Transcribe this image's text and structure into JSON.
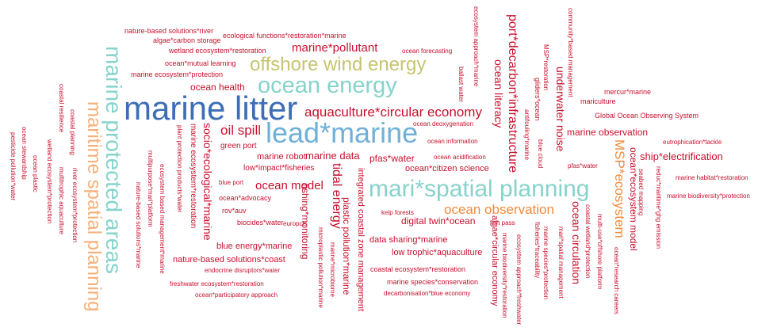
{
  "colors": {
    "red": "#c8102e",
    "blue": "#3d6eb5",
    "teal": "#86d3cc",
    "olive": "#c6c46f",
    "lightblue": "#6fb0d9",
    "orange": "#f28a3b",
    "peach": "#f5b07a"
  },
  "words": {
    "marine_litter": "marine litter",
    "lead_marine": "lead*marine",
    "mari_spatial_planning": "mari*spatial planning",
    "ocean_energy": "ocean energy",
    "offshore_wind_energy": "offshore wind energy",
    "marine_protected_areas": "marine protected areas",
    "maritime_spatial_planning": "maritime spatial planning",
    "aquaculture_circular_economy": "aquaculture*circular economy",
    "ocean_observation": "ocean observation",
    "msp_ecosystem": "MSP*ecosystem",
    "port_decarbon_infrastructure": "port*decarbon*infrastructure",
    "ocean_literacy": "ocean literacy",
    "tidal_energy": "tidal energy",
    "marine_pollutant": "marine*pollutant",
    "oil_spill": "oil spill",
    "ocean_model": "ocean model",
    "marine_data": "marine data",
    "pfas_water": "pfas*water",
    "ocean_health": "ocean health",
    "socio_ecological_marine": "socio*ecological*marine",
    "underwater_noise": "underwater noise",
    "ocean_circulation": "ocean circulation",
    "ocean_ecosystem_model": "ocean*ecosystem model",
    "marine_observation": "marine observation",
    "ship_electrification": "ship*electrification",
    "digital_twin_ocean": "digital twin*ocean",
    "plastic_pollution_marine": "plastic pollution*marine",
    "integrated_coastal_zone_management": "integrated coastal zone management",
    "fishing_monitoring": "fishing*monitoring",
    "ocean_citizen_science": "ocean*citizen science",
    "marine_robot": "marine robot",
    "low_impact_fisheries": "low*impact*fisheries",
    "green_port": "green port",
    "nature_based_solutions_coast": "nature-based solutions*coast",
    "blue_energy_marine": "blue energy*marine",
    "algae_circular_economy": "algae*circular economy",
    "data_sharing_marine": "data sharing*marine",
    "low_trophic_aquaculture": "low trophic*aquaculture",
    "marine_ecosystem_restoration": "marine ecosystem*restoration",
    "nature_based_solutions_river": "nature-based solutions*river",
    "algae_carbon_storage": "algae*carbon storage",
    "ecological_functions_restoration_marine": "ecological functions*restoration*marine",
    "wetland_ecosystem_restoration": "wetland ecosystem*restoration",
    "ocean_mutual_learning": "ocean*mutual learning",
    "marine_ecosystem_protection": "marine ecosystem*protection",
    "ocean_forecasting": "ocean forecasting",
    "ecosystem_approach_marine": "ecosystem approach*marine",
    "ballast_water": "ballast water",
    "msp_restoration": "MSP*restoration",
    "gliders_ocean": "gliders*ocean",
    "antifouling_marine": "antifouling*marine",
    "blue_cloud": "blue cloud",
    "community_based_management": "community*based management",
    "mercur_marine": "mercur*marine",
    "mariculture": "mariculture",
    "global_ocean_observing_system": "Global Ocean Observing System",
    "ocean_deoxygenation": "ocean deoxygenation",
    "ocean_information": "ocean information",
    "ocean_acidification": "ocean acidification",
    "eutrophication_tackle": "eutrophication*tackle",
    "pfas_water_small": "pfas*water",
    "seabed_mapping": "seabed mapping",
    "reduc_maritime_ghg_emission": "reduc*maritime*ghg emission",
    "marine_habitat_restoration": "marine habitat*restoration",
    "marine_biodiversity_protection": "marine biodiversity*protection",
    "kelp_forests": "kelp forests",
    "fish_pass": "fish pass",
    "marine_biodiversity_restoration": "marine biodiversity*restoration",
    "ecosystem_approach_freshwater": "ecosystem approach*freshwater",
    "marine_species_protection": "marine species*protection",
    "fisheries_traceability": "fisheries*traceability",
    "mari_spatial_management": "mari*spatial management",
    "multi_use_offshore_platform": "multi-use*offshore platform",
    "coastal_wetland_protection": "coastal wetland*protection",
    "ocean_research_careers": "ocean*research careers",
    "coastal_ecosystem_restoration": "coastal ecosystem*restoration",
    "marine_species_conservation": "marine species*conservation",
    "decarbonisation_blue_economy": "decarbonisation*blue economy",
    "microplastic_pollution_marine": "microplastic pollution*marine",
    "marine_microbiome": "marine*microbiome",
    "europcis": "europcis",
    "biocides_water": "biocides*water",
    "rov_auv": "rov*auv",
    "ocean_advocacy": "ocean*advocacy",
    "blue_port": "blue port",
    "endocrine_disruptors_water": "endocrine disruptors*water",
    "freshwater_ecosystem_restoration": "freshwater ecosystem*restoration",
    "ocean_participatory_approach": "ocean*participatory approach",
    "plant_protection_products_water": "plant protection products*water",
    "ecosystem_based_management_marine": "ecosystem based management*marine",
    "multipurpose_mari_platform": "multipurpose*mari*platform",
    "nature_based_solutions_marine": "nature-based solutions*marine",
    "river_ecosystem_protection": "river ecosystem*protection",
    "multitrophic_aquaculture": "multitrophic aquaculture",
    "wetland_ecosystem_protection": "wetland ecosystem*protection",
    "coastal_planning": "coastal planning",
    "coastal_resilience": "coastal resilience",
    "ocean_plastic": "ocean plastic",
    "ocean_stewardship": "ocean stewardship",
    "pesticide_pollution_water": "pesticide pollution*water"
  }
}
